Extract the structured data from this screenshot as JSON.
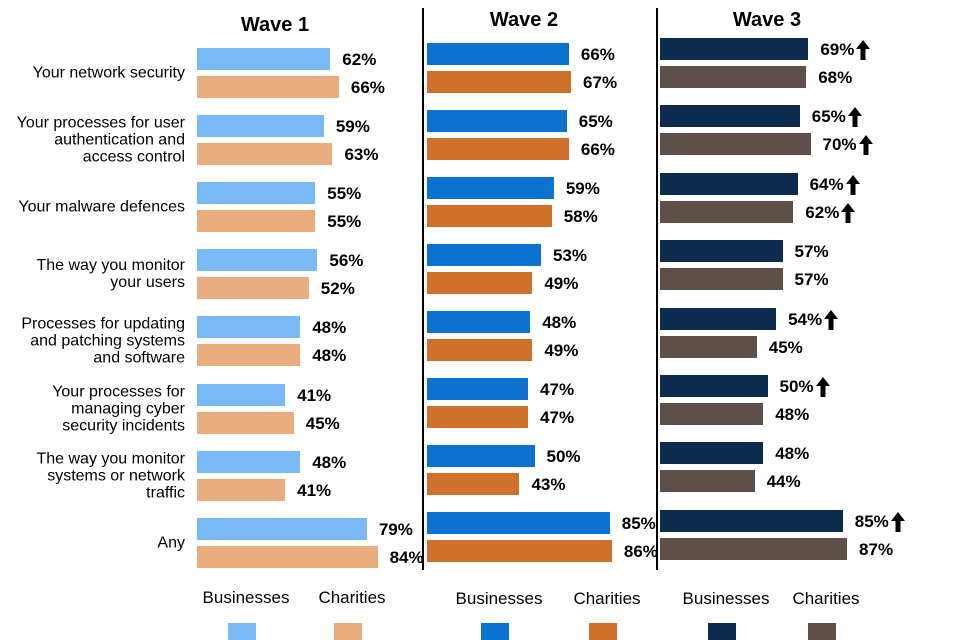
{
  "chart_data": {
    "type": "bar",
    "orientation": "horizontal",
    "categories": [
      "Your network security",
      "Your processes for user authentication and access control",
      "Your malware defences",
      "The way you monitor your users",
      "Processes for updating and patching systems and software",
      "Your processes for managing cyber security incidents",
      "The way you monitor systems or network traffic",
      "Any"
    ],
    "panels": [
      {
        "title": "Wave 1",
        "series": [
          {
            "name": "Businesses",
            "color": "#78b9f6",
            "values": [
              62,
              59,
              55,
              56,
              48,
              41,
              48,
              79
            ],
            "value_labels": [
              "62%",
              "59%",
              "55%",
              "56%",
              "48%",
              "41%",
              "48%",
              "79%"
            ]
          },
          {
            "name": "Charities",
            "color": "#e8ac7f",
            "values": [
              66,
              63,
              55,
              52,
              48,
              45,
              41,
              84
            ],
            "value_labels": [
              "66%",
              "63%",
              "55%",
              "52%",
              "48%",
              "45%",
              "41%",
              "84%"
            ]
          }
        ]
      },
      {
        "title": "Wave 2",
        "series": [
          {
            "name": "Businesses",
            "color": "#0b72d0",
            "values": [
              66,
              65,
              59,
              53,
              48,
              47,
              50,
              85
            ],
            "value_labels": [
              "66%",
              "65%",
              "59%",
              "53%",
              "48%",
              "47%",
              "50%",
              "85%"
            ]
          },
          {
            "name": "Charities",
            "color": "#d0712b",
            "values": [
              67,
              66,
              58,
              49,
              49,
              47,
              43,
              86
            ],
            "value_labels": [
              "67%",
              "66%",
              "58%",
              "49%",
              "49%",
              "47%",
              "43%",
              "86%"
            ]
          }
        ]
      },
      {
        "title": "Wave 3",
        "series": [
          {
            "name": "Businesses",
            "color": "#0d2b4e",
            "values": [
              69,
              65,
              64,
              57,
              54,
              50,
              48,
              85
            ],
            "value_labels": [
              "69%",
              "65%",
              "64%",
              "57%",
              "54%",
              "50%",
              "48%",
              "85%"
            ],
            "arrow": [
              true,
              true,
              true,
              false,
              true,
              true,
              false,
              true
            ]
          },
          {
            "name": "Charities",
            "color": "#5e4f49",
            "values": [
              68,
              70,
              62,
              57,
              45,
              48,
              44,
              87
            ],
            "value_labels": [
              "68%",
              "70%",
              "62%",
              "57%",
              "45%",
              "48%",
              "44%",
              "87%"
            ],
            "arrow": [
              false,
              true,
              true,
              false,
              false,
              false,
              false,
              false
            ]
          }
        ]
      }
    ]
  }
}
